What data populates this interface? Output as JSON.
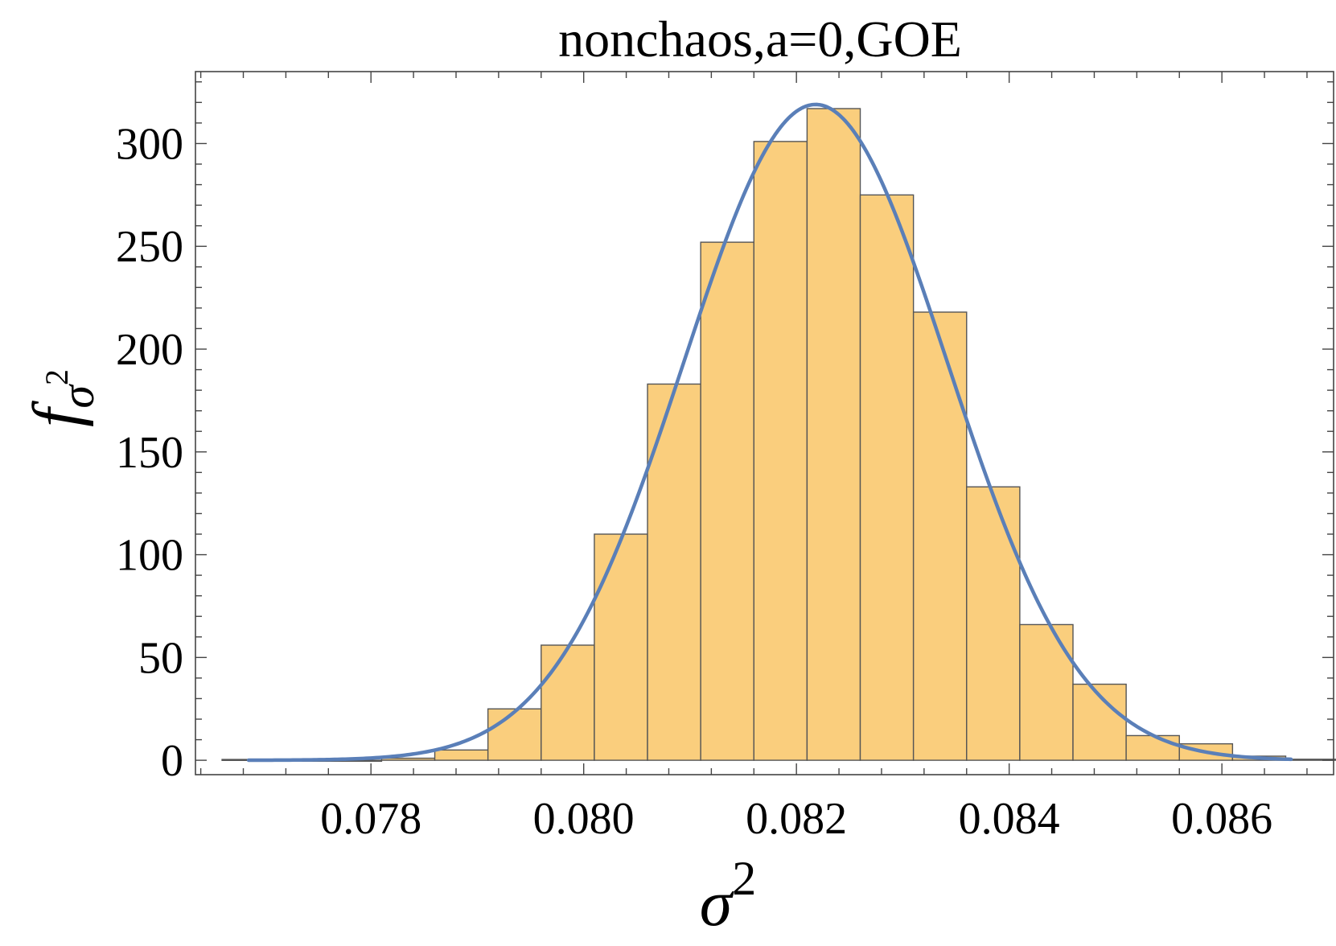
{
  "chart_data": {
    "type": "bar",
    "title": "nonchaos,a=0,GOE",
    "xlabel": {
      "symbol": "σ",
      "sup": "2"
    },
    "ylabel": {
      "symbol": "f",
      "sub": "σ",
      "subsup": "2"
    },
    "xlim": [
      0.07635,
      0.08705
    ],
    "ylim": [
      -7,
      335
    ],
    "x_ticks": [
      "0.078",
      "0.080",
      "0.082",
      "0.084",
      "0.086"
    ],
    "y_ticks": [
      "0",
      "50",
      "100",
      "150",
      "200",
      "250",
      "300"
    ],
    "bin_width": 0.0005,
    "bins": [
      {
        "x0": 0.0766,
        "x1": 0.0771,
        "value": 0.4
      },
      {
        "x0": 0.0771,
        "x1": 0.0776,
        "value": 0
      },
      {
        "x0": 0.0776,
        "x1": 0.0781,
        "value": 0
      },
      {
        "x0": 0.0781,
        "x1": 0.0786,
        "value": 1
      },
      {
        "x0": 0.0786,
        "x1": 0.0791,
        "value": 5
      },
      {
        "x0": 0.0791,
        "x1": 0.0796,
        "value": 25
      },
      {
        "x0": 0.0796,
        "x1": 0.0801,
        "value": 56
      },
      {
        "x0": 0.0801,
        "x1": 0.0806,
        "value": 110
      },
      {
        "x0": 0.0806,
        "x1": 0.0811,
        "value": 183
      },
      {
        "x0": 0.0811,
        "x1": 0.0816,
        "value": 252
      },
      {
        "x0": 0.0816,
        "x1": 0.0821,
        "value": 301
      },
      {
        "x0": 0.0821,
        "x1": 0.0826,
        "value": 317
      },
      {
        "x0": 0.0826,
        "x1": 0.0831,
        "value": 275
      },
      {
        "x0": 0.0831,
        "x1": 0.0836,
        "value": 218
      },
      {
        "x0": 0.0836,
        "x1": 0.0841,
        "value": 133
      },
      {
        "x0": 0.0841,
        "x1": 0.0846,
        "value": 66
      },
      {
        "x0": 0.0846,
        "x1": 0.0851,
        "value": 37
      },
      {
        "x0": 0.0851,
        "x1": 0.0856,
        "value": 12
      },
      {
        "x0": 0.0856,
        "x1": 0.0861,
        "value": 8
      },
      {
        "x0": 0.0861,
        "x1": 0.0866,
        "value": 2
      },
      {
        "x0": 0.0866,
        "x1": 0.0871,
        "value": 0.5
      }
    ],
    "curve": {
      "type": "gaussian",
      "mean": 0.08218,
      "sd": 0.00124,
      "peak": 319,
      "x_range": [
        0.07685,
        0.08665
      ]
    },
    "colors": {
      "bar_fill": "#FACE7D",
      "bar_stroke": "#555555",
      "curve": "#5A7FB8",
      "frame": "#444444"
    },
    "grid": false,
    "legend": "none"
  }
}
